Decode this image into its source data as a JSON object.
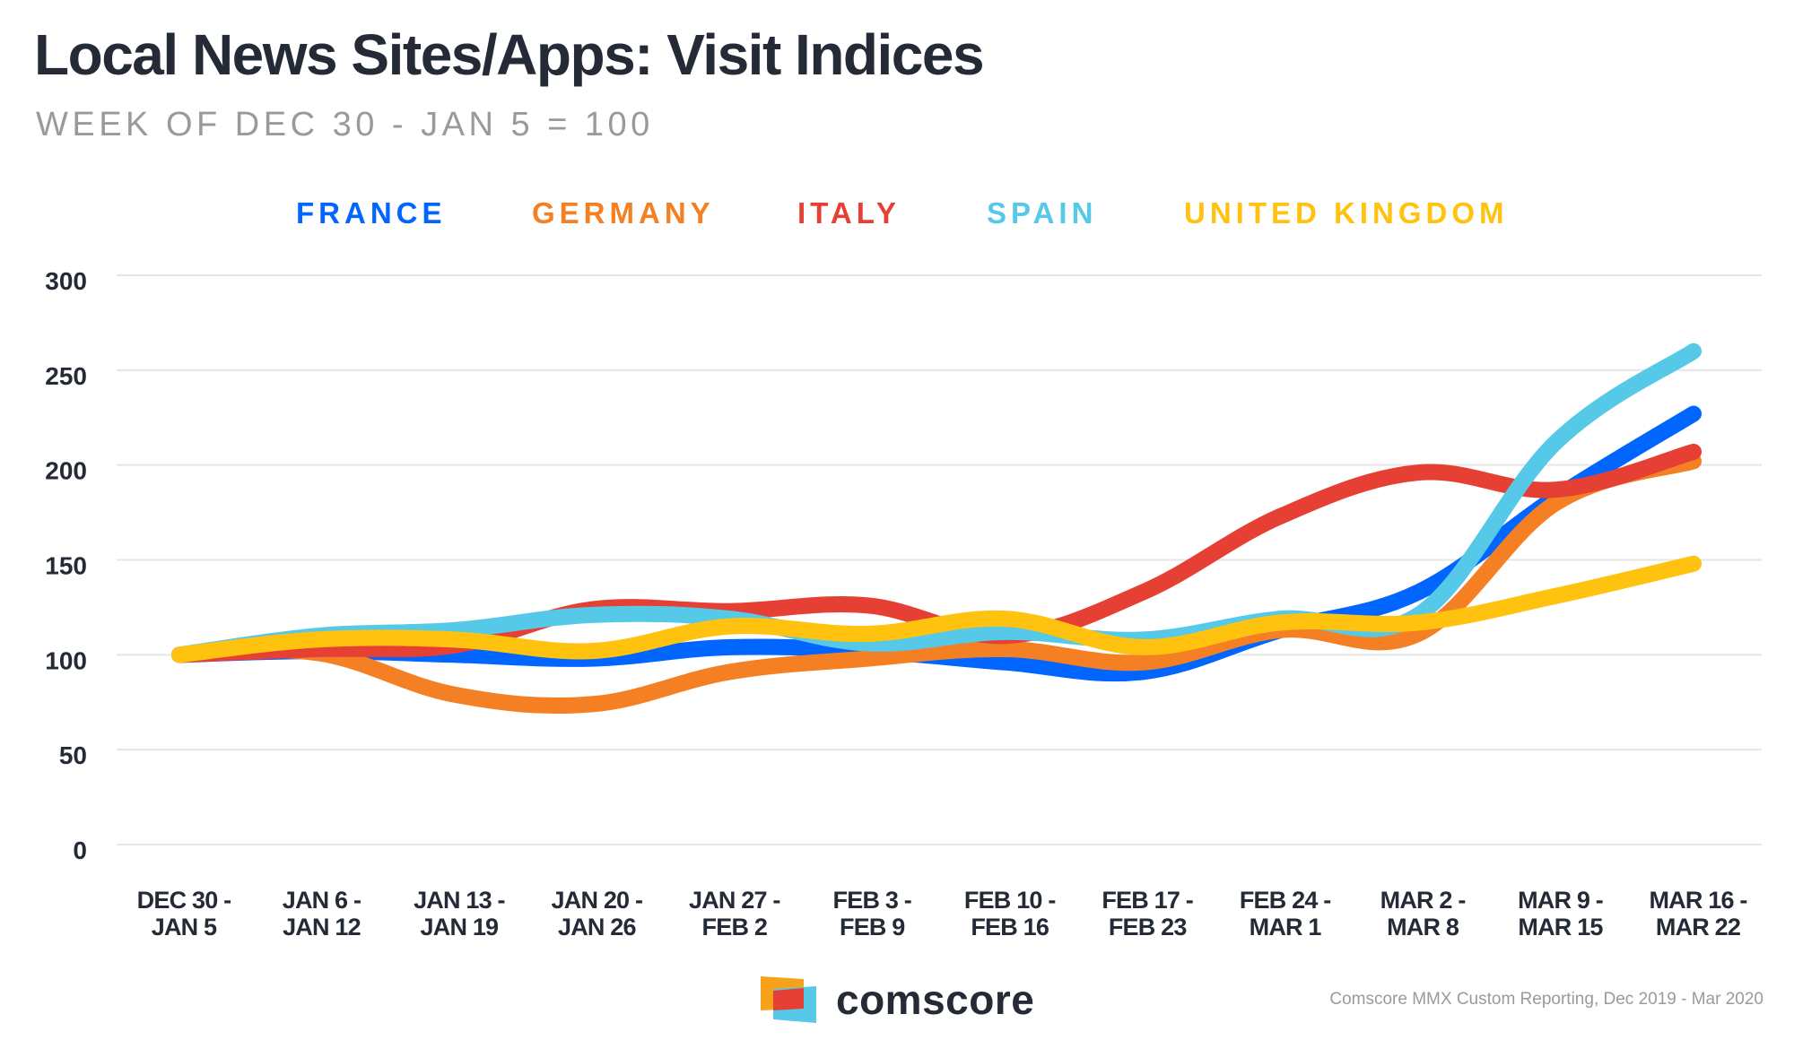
{
  "header": {
    "title": "Local News Sites/Apps: Visit Indices",
    "subtitle": "WEEK OF DEC 30 - JAN 5 = 100"
  },
  "footer": {
    "logo_text": "comscore",
    "source": "Comscore MMX Custom Reporting, Dec 2019 - Mar 2020",
    "logo_colors": {
      "orange": "#f7a21b",
      "red": "#e63f33",
      "blue": "#56c8e8"
    }
  },
  "chart_data": {
    "type": "line",
    "title": "Local News Sites/Apps: Visit Indices",
    "subtitle": "WEEK OF DEC 30 - JAN 5 = 100",
    "xlabel": "",
    "ylabel": "",
    "ylim": [
      0,
      300
    ],
    "yticks": [
      0,
      50,
      100,
      150,
      200,
      250,
      300
    ],
    "grid": true,
    "legend_position": "top-center",
    "smooth": true,
    "categories": [
      [
        "DEC 30 -",
        "JAN 5"
      ],
      [
        "JAN 6 -",
        "JAN 12"
      ],
      [
        "JAN 13 -",
        "JAN 19"
      ],
      [
        "JAN 20 -",
        "JAN 26"
      ],
      [
        "JAN 27 -",
        "FEB 2"
      ],
      [
        "FEB 3 -",
        "FEB 9"
      ],
      [
        "FEB 10 -",
        "FEB 16"
      ],
      [
        "FEB 17 -",
        "FEB 23"
      ],
      [
        "FEB 24 -",
        "MAR 1"
      ],
      [
        "MAR 2 -",
        "MAR 8"
      ],
      [
        "MAR 9 -",
        "MAR 15"
      ],
      [
        "MAR 16 -",
        "MAR 22"
      ]
    ],
    "series": [
      {
        "name": "FRANCE",
        "color": "#0066ff",
        "values": [
          100,
          102,
          100,
          98,
          104,
          102,
          96,
          91,
          113,
          133,
          183,
          227
        ]
      },
      {
        "name": "GERMANY",
        "color": "#f58023",
        "values": [
          100,
          101,
          79,
          74,
          91,
          98,
          103,
          96,
          113,
          111,
          180,
          202
        ]
      },
      {
        "name": "ITALY",
        "color": "#e63f33",
        "values": [
          100,
          103,
          105,
          124,
          123,
          126,
          110,
          133,
          173,
          196,
          187,
          207
        ]
      },
      {
        "name": "SPAIN",
        "color": "#56c8e8",
        "values": [
          100,
          110,
          113,
          121,
          119,
          106,
          112,
          108,
          119,
          121,
          212,
          260
        ]
      },
      {
        "name": "UNITED KINGDOM",
        "color": "#ffc20e",
        "values": [
          100,
          108,
          108,
          102,
          115,
          111,
          119,
          104,
          117,
          117,
          131,
          148
        ]
      }
    ]
  }
}
